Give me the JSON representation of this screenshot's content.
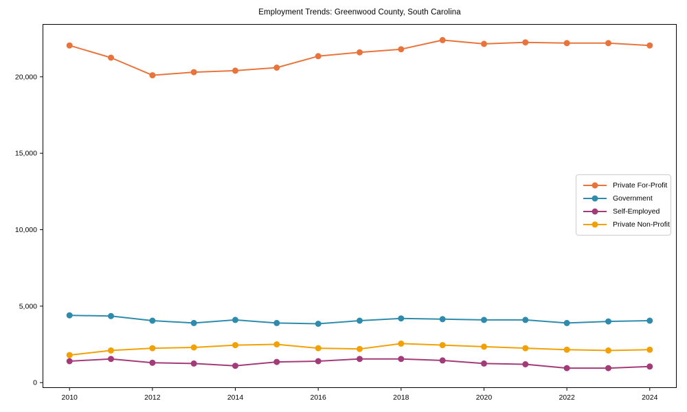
{
  "chart_data": {
    "type": "line",
    "title": "Employment Trends: Greenwood County, South Carolina",
    "xlabel": "",
    "ylabel": "",
    "x": [
      2010,
      2011,
      2012,
      2013,
      2014,
      2015,
      2016,
      2017,
      2018,
      2019,
      2020,
      2021,
      2022,
      2023,
      2024
    ],
    "x_ticks": [
      2010,
      2012,
      2014,
      2016,
      2018,
      2020,
      2022,
      2024
    ],
    "x_tick_labels": [
      "2010",
      "2012",
      "2014",
      "2016",
      "2018",
      "2020",
      "2022",
      "2024"
    ],
    "y_ticks": [
      0,
      5000,
      10000,
      15000,
      20000
    ],
    "y_tick_labels": [
      "0",
      "5,000",
      "10,000",
      "15,000",
      "20,000"
    ],
    "xlim": [
      2009.35,
      2024.65
    ],
    "ylim": [
      -350,
      23450
    ],
    "grid": false,
    "legend_position": "center-right",
    "axis_color": "#000000",
    "series": [
      {
        "name": "Private For-Profit",
        "color": "#e8743b",
        "values": [
          22050,
          21250,
          20100,
          20300,
          20400,
          20600,
          21350,
          21600,
          21800,
          22400,
          22150,
          22250,
          22200,
          22200,
          22050
        ]
      },
      {
        "name": "Government",
        "color": "#2e8bab",
        "values": [
          4400,
          4350,
          4050,
          3900,
          4100,
          3900,
          3850,
          4050,
          4200,
          4150,
          4100,
          4100,
          3900,
          4000,
          4050
        ]
      },
      {
        "name": "Self-Employed",
        "color": "#a33b78",
        "values": [
          1400,
          1550,
          1300,
          1250,
          1100,
          1350,
          1400,
          1550,
          1550,
          1450,
          1250,
          1200,
          950,
          950,
          1050
        ]
      },
      {
        "name": "Private Non-Profit",
        "color": "#f2a104",
        "values": [
          1800,
          2100,
          2250,
          2300,
          2450,
          2500,
          2250,
          2200,
          2550,
          2450,
          2350,
          2250,
          2150,
          2100,
          2150
        ]
      }
    ]
  }
}
